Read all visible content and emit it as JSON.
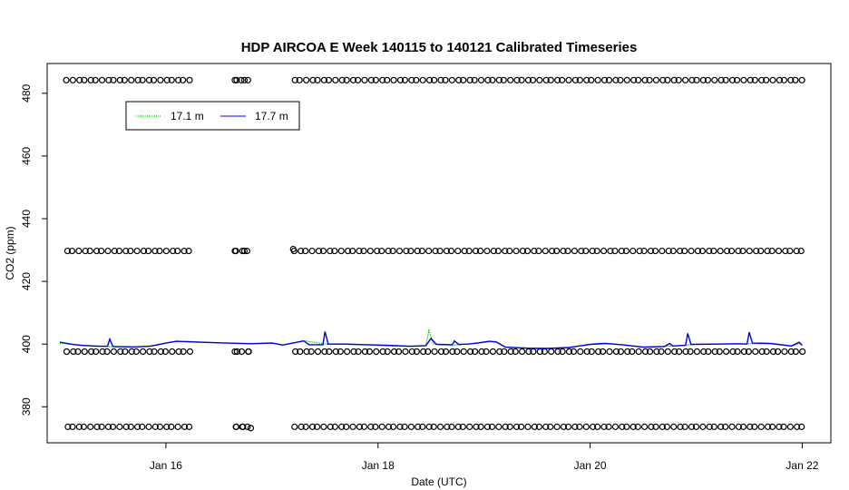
{
  "chart_data": {
    "type": "line",
    "title": "HDP AIRCOA E  Week 140115 to 140121  Calibrated Timeseries",
    "xlabel": "Date (UTC)",
    "ylabel": "CO2 (ppm)",
    "x_ticks": [
      {
        "value": 16,
        "label": "Jan 16"
      },
      {
        "value": 18,
        "label": "Jan 18"
      },
      {
        "value": 20,
        "label": "Jan 20"
      },
      {
        "value": 22,
        "label": "Jan 22"
      }
    ],
    "y_ticks": [
      380,
      400,
      420,
      440,
      460,
      480
    ],
    "xlim": [
      14.88,
      22.27
    ],
    "ylim": [
      368.5,
      489.5
    ],
    "grid": false,
    "legend_position": "top-left",
    "series": [
      {
        "name": "17.1 m",
        "color": "#00aa00",
        "style": "dotted",
        "points": [
          [
            15.0,
            400.3
          ],
          [
            15.15,
            399.8
          ],
          [
            15.3,
            399.5
          ],
          [
            15.5,
            399.1
          ],
          [
            15.7,
            399.0
          ],
          [
            15.9,
            399.6
          ],
          [
            16.05,
            400.6
          ],
          [
            16.2,
            400.9
          ],
          [
            16.5,
            400.4
          ],
          [
            16.8,
            400.2
          ],
          [
            17.0,
            400.4
          ],
          [
            17.1,
            399.6
          ],
          [
            17.3,
            401.1
          ],
          [
            17.5,
            400.0
          ],
          [
            17.7,
            399.9
          ],
          [
            17.9,
            399.7
          ],
          [
            18.1,
            399.4
          ],
          [
            18.3,
            399.2
          ],
          [
            18.45,
            399.5
          ],
          [
            18.48,
            404.3
          ],
          [
            18.52,
            400.0
          ],
          [
            18.7,
            399.6
          ],
          [
            18.95,
            400.3
          ],
          [
            19.1,
            400.9
          ],
          [
            19.2,
            399.1
          ],
          [
            19.5,
            398.6
          ],
          [
            19.8,
            398.8
          ],
          [
            20.0,
            399.9
          ],
          [
            20.1,
            400.3
          ],
          [
            20.3,
            399.8
          ],
          [
            20.5,
            399.1
          ],
          [
            20.8,
            399.4
          ],
          [
            21.0,
            399.9
          ],
          [
            21.2,
            400.0
          ],
          [
            21.5,
            400.1
          ],
          [
            21.7,
            400.1
          ],
          [
            21.9,
            399.4
          ],
          [
            22.0,
            400.4
          ]
        ]
      },
      {
        "name": "17.7 m",
        "color": "#0000dd",
        "style": "solid",
        "points": [
          [
            15.0,
            400.6
          ],
          [
            15.1,
            400.0
          ],
          [
            15.2,
            399.6
          ],
          [
            15.35,
            399.3
          ],
          [
            15.45,
            399.3
          ],
          [
            15.47,
            401.6
          ],
          [
            15.5,
            399.2
          ],
          [
            15.7,
            399.1
          ],
          [
            15.85,
            399.3
          ],
          [
            16.0,
            400.3
          ],
          [
            16.1,
            400.9
          ],
          [
            16.25,
            400.7
          ],
          [
            16.5,
            400.4
          ],
          [
            16.8,
            400.1
          ],
          [
            17.0,
            400.3
          ],
          [
            17.1,
            399.7
          ],
          [
            17.3,
            401.0
          ],
          [
            17.35,
            399.8
          ],
          [
            17.48,
            399.8
          ],
          [
            17.5,
            404.0
          ],
          [
            17.53,
            400.0
          ],
          [
            17.7,
            400.0
          ],
          [
            17.9,
            399.8
          ],
          [
            18.1,
            399.6
          ],
          [
            18.3,
            399.3
          ],
          [
            18.45,
            399.5
          ],
          [
            18.5,
            401.8
          ],
          [
            18.55,
            399.9
          ],
          [
            18.7,
            399.8
          ],
          [
            18.72,
            401.0
          ],
          [
            18.76,
            399.9
          ],
          [
            18.85,
            400.0
          ],
          [
            18.95,
            400.4
          ],
          [
            19.05,
            400.9
          ],
          [
            19.12,
            400.6
          ],
          [
            19.2,
            399.0
          ],
          [
            19.4,
            398.7
          ],
          [
            19.6,
            398.6
          ],
          [
            19.8,
            398.9
          ],
          [
            20.0,
            399.9
          ],
          [
            20.15,
            400.2
          ],
          [
            20.3,
            399.8
          ],
          [
            20.5,
            399.0
          ],
          [
            20.7,
            399.2
          ],
          [
            20.75,
            400.2
          ],
          [
            20.78,
            399.4
          ],
          [
            20.9,
            399.6
          ],
          [
            20.92,
            403.4
          ],
          [
            20.95,
            399.9
          ],
          [
            21.2,
            400.0
          ],
          [
            21.4,
            400.1
          ],
          [
            21.48,
            400.0
          ],
          [
            21.5,
            403.8
          ],
          [
            21.53,
            400.3
          ],
          [
            21.7,
            400.2
          ],
          [
            21.9,
            399.4
          ],
          [
            21.97,
            400.6
          ],
          [
            22.0,
            399.6
          ]
        ]
      }
    ],
    "calibration_markers": {
      "symbol": "circle",
      "levels": [
        484.2,
        429.7,
        397.6,
        373.6
      ],
      "x_start": 15.06,
      "x_end": 22.0,
      "spacing": 0.055,
      "gaps": [
        [
          16.22,
          16.62
        ],
        [
          16.8,
          17.18
        ]
      ],
      "isolated": [
        [
          16.65,
          484.2
        ],
        [
          16.74,
          484.2
        ],
        [
          16.65,
          429.7
        ],
        [
          16.74,
          429.7
        ],
        [
          16.65,
          397.6
        ],
        [
          16.78,
          397.6
        ],
        [
          16.66,
          373.6
        ],
        [
          16.72,
          373.6
        ],
        [
          16.8,
          373.2
        ],
        [
          17.2,
          430.3
        ]
      ]
    }
  }
}
